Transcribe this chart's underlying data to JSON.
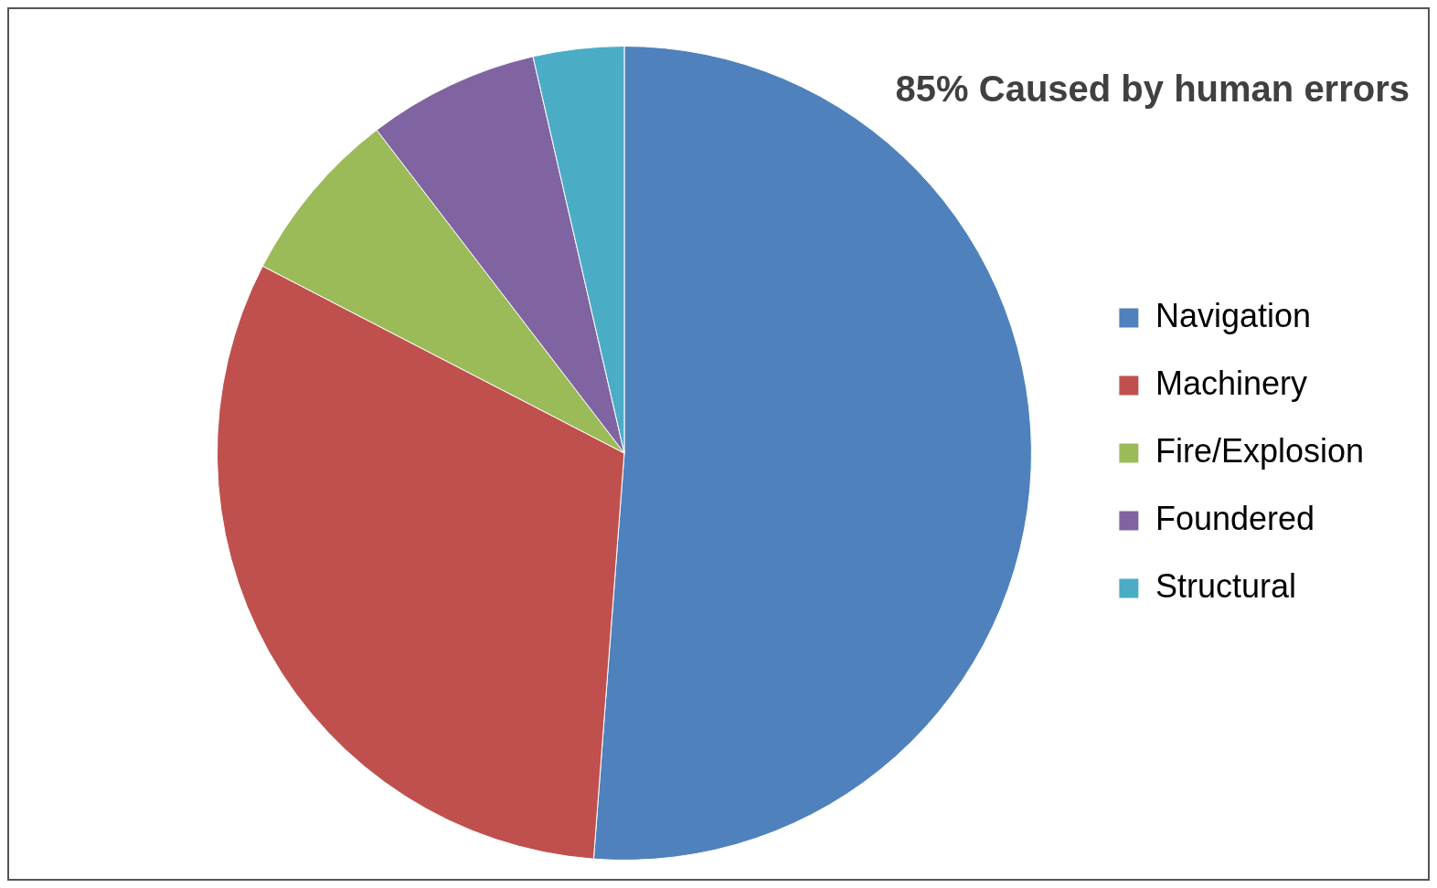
{
  "chart_data": {
    "type": "pie",
    "annotations": [
      "85% Caused by human errors"
    ],
    "categories": [
      "Navigation",
      "Machinery",
      "Fire/Explosion",
      "Foundered",
      "Structural"
    ],
    "values": [
      51.2,
      31.4,
      7,
      6.8,
      3.6
    ],
    "colors": [
      "#4f81bd",
      "#c0504d",
      "#9bbb59",
      "#8064a2",
      "#4bacc6"
    ],
    "legend": "right"
  }
}
